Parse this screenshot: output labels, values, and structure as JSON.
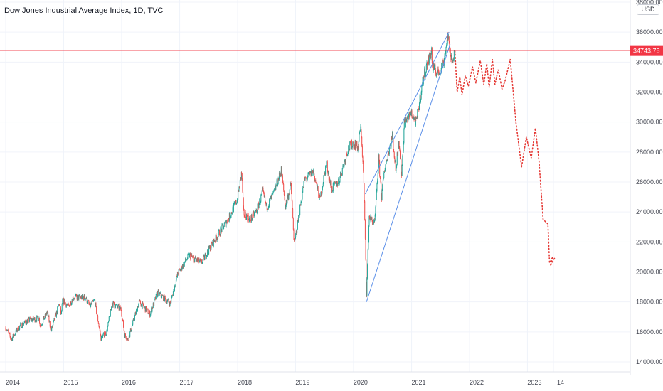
{
  "header": {
    "title": "Dow Jones Industrial Average Index, 1D, TVC",
    "currency": "USD"
  },
  "chart_data": {
    "type": "line",
    "title": "Dow Jones Industrial Average Index, 1D, TVC",
    "ylim": [
      13200,
      38200
    ],
    "y_ticks": [
      "14000.00",
      "16000.00",
      "18000.00",
      "20000.00",
      "22000.00",
      "24000.00",
      "26000.00",
      "28000.00",
      "30000.00",
      "32000.00",
      "34000.00",
      "36000.00",
      "38000.00"
    ],
    "x_ticks": [
      "2014",
      "2015",
      "2016",
      "2017",
      "2018",
      "2019",
      "2020",
      "2021",
      "2022",
      "2023",
      "14"
    ],
    "grid": true,
    "last_price": "34743.75",
    "last_price_value": 34743.75,
    "colors": {
      "up": "#26a69a",
      "down": "#ef5350",
      "trendline": "#5b8fe8",
      "projection": "#e53935",
      "last_price": "#f23645"
    },
    "series": [
      {
        "type": "price",
        "points": [
          [
            "2014-01-01",
            16300
          ],
          [
            "2014-02-04",
            15500
          ],
          [
            "2014-04-01",
            16400
          ],
          [
            "2014-06-01",
            16800
          ],
          [
            "2014-07-30",
            16900
          ],
          [
            "2014-08-07",
            16400
          ],
          [
            "2014-09-19",
            17300
          ],
          [
            "2014-10-15",
            16100
          ],
          [
            "2014-12-05",
            17900
          ],
          [
            "2014-12-16",
            17100
          ],
          [
            "2014-12-26",
            18100
          ],
          [
            "2015-02-01",
            17700
          ],
          [
            "2015-03-02",
            18300
          ],
          [
            "2015-05-19",
            18300
          ],
          [
            "2015-06-15",
            17700
          ],
          [
            "2015-07-15",
            18100
          ],
          [
            "2015-08-24",
            15600
          ],
          [
            "2015-09-29",
            16000
          ],
          [
            "2015-11-03",
            17900
          ],
          [
            "2015-12-29",
            17500
          ],
          [
            "2016-01-20",
            15800
          ],
          [
            "2016-02-11",
            15500
          ],
          [
            "2016-04-20",
            18000
          ],
          [
            "2016-06-27",
            17200
          ],
          [
            "2016-08-15",
            18600
          ],
          [
            "2016-11-03",
            17900
          ],
          [
            "2016-12-20",
            19900
          ],
          [
            "2017-03-01",
            21100
          ],
          [
            "2017-05-17",
            20600
          ],
          [
            "2017-08-07",
            22100
          ],
          [
            "2017-11-07",
            23600
          ],
          [
            "2017-12-29",
            24800
          ],
          [
            "2018-01-26",
            26600
          ],
          [
            "2018-02-08",
            23900
          ],
          [
            "2018-03-23",
            23500
          ],
          [
            "2018-05-01",
            24100
          ],
          [
            "2018-06-08",
            25300
          ],
          [
            "2018-07-02",
            24300
          ],
          [
            "2018-08-15",
            25200
          ],
          [
            "2018-10-03",
            26800
          ],
          [
            "2018-10-29",
            24400
          ],
          [
            "2018-12-03",
            25800
          ],
          [
            "2018-12-24",
            21800
          ],
          [
            "2019-02-25",
            26100
          ],
          [
            "2019-04-23",
            26700
          ],
          [
            "2019-06-03",
            24800
          ],
          [
            "2019-07-15",
            27300
          ],
          [
            "2019-08-14",
            25500
          ],
          [
            "2019-10-02",
            26100
          ],
          [
            "2019-11-27",
            28200
          ],
          [
            "2019-12-27",
            28600
          ],
          [
            "2020-01-31",
            28300
          ],
          [
            "2020-02-12",
            29600
          ],
          [
            "2020-02-20",
            29200
          ],
          [
            "2020-03-06",
            25900
          ],
          [
            "2020-03-23",
            18600
          ],
          [
            "2020-04-09",
            23700
          ],
          [
            "2020-05-13",
            23200
          ],
          [
            "2020-06-08",
            27500
          ],
          [
            "2020-06-26",
            25000
          ],
          [
            "2020-07-15",
            26900
          ],
          [
            "2020-09-02",
            29100
          ],
          [
            "2020-09-23",
            26800
          ],
          [
            "2020-10-12",
            28800
          ],
          [
            "2020-10-30",
            26500
          ],
          [
            "2020-11-16",
            29900
          ],
          [
            "2020-12-31",
            30600
          ],
          [
            "2021-01-29",
            29900
          ],
          [
            "2021-03-17",
            33000
          ],
          [
            "2021-05-07",
            34800
          ],
          [
            "2021-05-12",
            33600
          ],
          [
            "2021-06-18",
            33300
          ],
          [
            "2021-07-19",
            33900
          ],
          [
            "2021-08-16",
            35600
          ],
          [
            "2021-09-20",
            33800
          ],
          [
            "2021-09-28",
            34743.75
          ]
        ]
      },
      {
        "type": "trendline",
        "points": [
          [
            "2020-03-23",
            18000
          ],
          [
            "2021-09-01",
            35200
          ]
        ]
      },
      {
        "type": "trendline",
        "points": [
          [
            "2020-03-15",
            25200
          ],
          [
            "2021-08-25",
            36000
          ]
        ]
      },
      {
        "type": "projection",
        "points": [
          [
            "2021-10-01",
            34743.75
          ],
          [
            "2021-10-15",
            32000
          ],
          [
            "2021-11-01",
            33000
          ],
          [
            "2021-11-15",
            31800
          ],
          [
            "2021-12-05",
            33100
          ],
          [
            "2021-12-25",
            32400
          ],
          [
            "2022-01-20",
            33700
          ],
          [
            "2022-02-10",
            32600
          ],
          [
            "2022-03-10",
            34100
          ],
          [
            "2022-04-01",
            32500
          ],
          [
            "2022-04-20",
            33900
          ],
          [
            "2022-05-05",
            32300
          ],
          [
            "2022-05-25",
            34200
          ],
          [
            "2022-06-10",
            32500
          ],
          [
            "2022-07-01",
            33500
          ],
          [
            "2022-07-25",
            32200
          ],
          [
            "2022-08-15",
            32800
          ],
          [
            "2022-09-15",
            34200
          ],
          [
            "2022-10-20",
            30000
          ],
          [
            "2022-11-25",
            27000
          ],
          [
            "2022-12-25",
            29000
          ],
          [
            "2023-01-25",
            27600
          ],
          [
            "2023-02-20",
            29600
          ],
          [
            "2023-03-15",
            27400
          ],
          [
            "2023-04-10",
            23500
          ],
          [
            "2023-05-10",
            23200
          ],
          [
            "2023-05-20",
            20600
          ],
          [
            "2023-06-10",
            21000
          ],
          [
            "2023-05-25",
            20400
          ],
          [
            "2023-06-20",
            20900
          ]
        ]
      }
    ]
  }
}
